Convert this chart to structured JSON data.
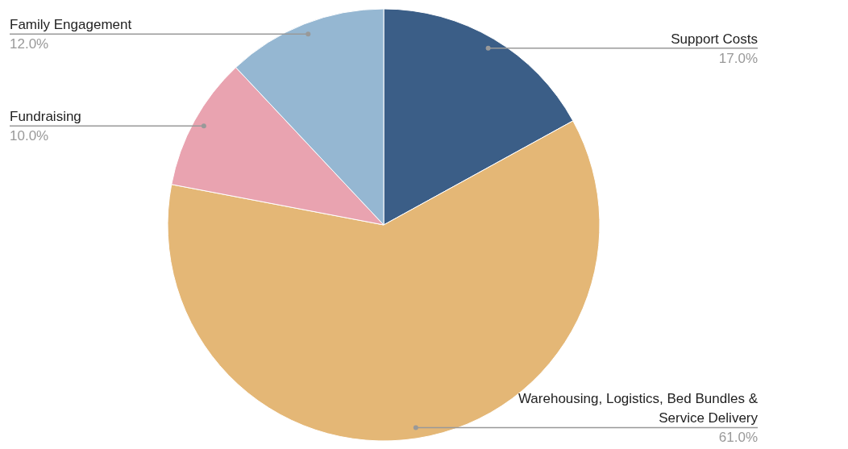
{
  "chart_data": {
    "type": "pie",
    "categories": [
      "Support Costs",
      "Warehousing, Logistics, Bed Bundles & Service Delivery",
      "Fundraising",
      "Family Engagement"
    ],
    "values": [
      17,
      61,
      10,
      12
    ],
    "value_labels": [
      "17.0%",
      "61.0%",
      "10.0%",
      "12.0%"
    ],
    "colors": [
      "#3b5e87",
      "#e4b776",
      "#e9a3b0",
      "#95b7d2"
    ],
    "legend": false
  }
}
